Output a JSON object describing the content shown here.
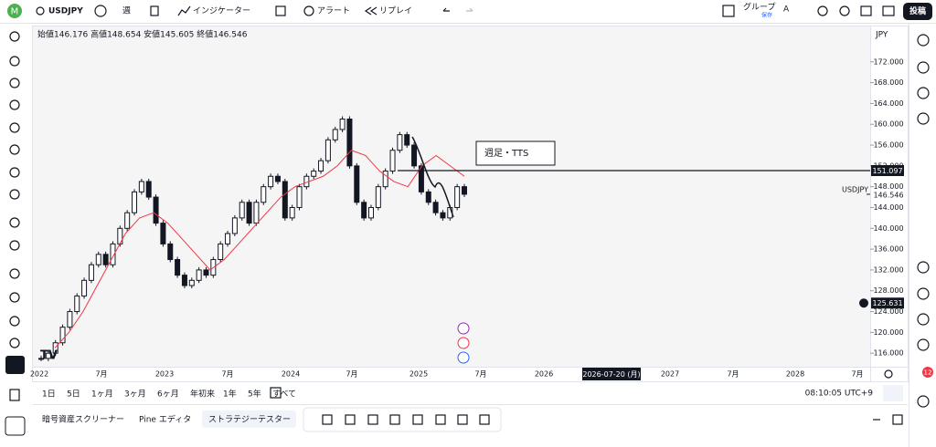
{
  "toolbar": {
    "symbol": "USDJPY",
    "interval": "週",
    "indicators": "インジケーター",
    "alert": "アラート",
    "replay": "リプレイ",
    "group": "グループ",
    "save": "保存",
    "layout": "A",
    "publish": "投稿"
  },
  "legend": "始値146.176 高値148.654 安値145.605 終値146.546",
  "chart_data": {
    "type": "candlestick",
    "closes": [
      115,
      116,
      118,
      121,
      124,
      127,
      130,
      133,
      135,
      133,
      137,
      140,
      143,
      147,
      149,
      146,
      141,
      137,
      134,
      131,
      129,
      130,
      132,
      131,
      134,
      137,
      139,
      142,
      145,
      141,
      145,
      148,
      150,
      149,
      142,
      144,
      148,
      150,
      151,
      153,
      157,
      159,
      161,
      152,
      145,
      142,
      144,
      148,
      151,
      155,
      158,
      156,
      152,
      147,
      145,
      143,
      142,
      144,
      148,
      146.546
    ],
    "ma": [
      117,
      120,
      124,
      129,
      134,
      139,
      142,
      143,
      141,
      138,
      135,
      132,
      134,
      137,
      140,
      143,
      146,
      148,
      149,
      150,
      152,
      155,
      154,
      151,
      149,
      148,
      152,
      154,
      152,
      150
    ],
    "ylim": [
      113.4,
      178.8
    ],
    "yticks": [
      {
        "value": 172,
        "label": "172.000"
      },
      {
        "value": 168,
        "label": "168.000"
      },
      {
        "value": 164,
        "label": "164.000"
      },
      {
        "value": 160,
        "label": "160.000"
      },
      {
        "value": 156,
        "label": "156.000"
      },
      {
        "value": 152,
        "label": "152.000"
      },
      {
        "value": 148,
        "label": "148.000"
      },
      {
        "value": 144,
        "label": "144.000"
      },
      {
        "value": 140,
        "label": "140.000"
      },
      {
        "value": 136,
        "label": "136.000"
      },
      {
        "value": 132,
        "label": "132.000"
      },
      {
        "value": 128,
        "label": "128.000"
      },
      {
        "value": 124,
        "label": "124.000"
      },
      {
        "value": 120,
        "label": "120.000"
      },
      {
        "value": 116,
        "label": "116.000"
      }
    ],
    "currency": "JPY",
    "time_labels": [
      "2022",
      "7月",
      "2023",
      "7月",
      "2024",
      "7月",
      "2025",
      "7月",
      "2026",
      "2027",
      "7月",
      "2028",
      "7月"
    ],
    "crosshair_time": "2026-07-20 (月)",
    "hline": {
      "value": 151.097,
      "label": "151.097"
    },
    "marker": {
      "value": 125.631,
      "label": "125.631"
    },
    "last": {
      "symbol": "USDJPY",
      "value": 146.546,
      "label": "146.546"
    },
    "annotation": "週足・TTS"
  },
  "timeframes": [
    "1日",
    "5日",
    "1ヶ月",
    "3ヶ月",
    "6ヶ月",
    "年初来",
    "1年",
    "5年",
    "すべて"
  ],
  "clock": "08:10:05 UTC+9",
  "tabs": [
    "暗号資産スクリーナー",
    "Pine エディタ",
    "ストラテジーテスター"
  ],
  "badge": "12"
}
